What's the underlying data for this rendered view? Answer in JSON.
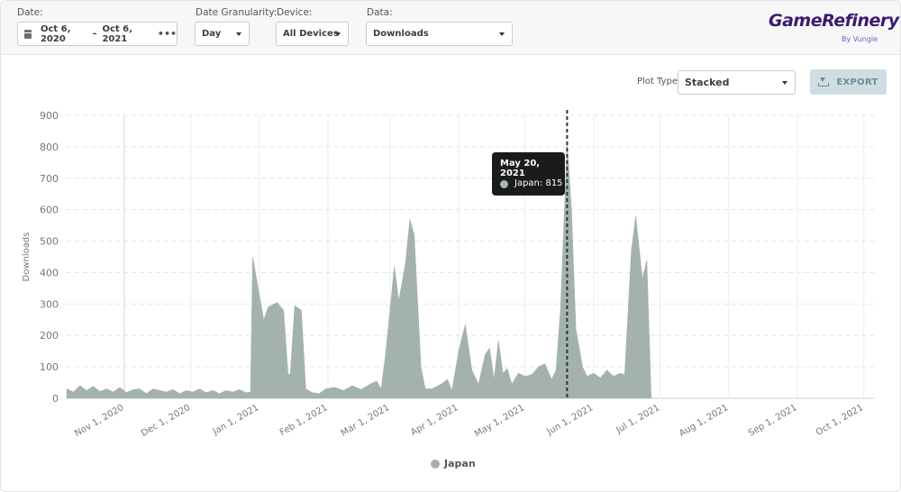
{
  "filters": {
    "date_label": "Date:",
    "date_start": "Oct 6, 2020",
    "date_sep": "–",
    "date_end": "Oct 6, 2021",
    "more": "•••",
    "granularity_label": "Date Granularity:",
    "granularity_value": "Day",
    "device_label": "Device:",
    "device_value": "All Devices",
    "data_label": "Data:",
    "data_value": "Downloads"
  },
  "brand": {
    "name": "GameRefinery",
    "sub": "By Vungle"
  },
  "toolbar": {
    "plot_type_label": "Plot Type:",
    "plot_type_value": "Stacked",
    "export_label": "EXPORT"
  },
  "tooltip": {
    "date": "May 20, 2021",
    "series": "Japan",
    "value_text": "815"
  },
  "colors": {
    "series": "#a3b3ab",
    "crosshair": "#333333",
    "tooltip_bg": "#1b1b1b",
    "export_bg": "#cfdde3"
  },
  "chart_data": {
    "type": "area",
    "stacked": true,
    "ylabel": "Downloads",
    "ylim": [
      0,
      900
    ],
    "yticks": [
      0,
      100,
      200,
      300,
      400,
      500,
      600,
      700,
      800,
      900
    ],
    "xlim": [
      "2020-10-06",
      "2021-10-06"
    ],
    "xticks": [
      "2020-11-01",
      "2020-12-01",
      "2021-01-01",
      "2021-02-01",
      "2021-03-01",
      "2021-04-01",
      "2021-05-01",
      "2021-06-01",
      "2021-07-01",
      "2021-08-01",
      "2021-09-01",
      "2021-10-01"
    ],
    "xtick_labels": [
      "Nov 1, 2020",
      "Dec 1, 2020",
      "Jan 1, 2021",
      "Feb 1, 2021",
      "Mar 1, 2021",
      "Apr 1, 2021",
      "May 1, 2021",
      "Jun 1, 2021",
      "Jul 1, 2021",
      "Aug 1, 2021",
      "Sep 1, 2021",
      "Oct 1, 2021"
    ],
    "grid": true,
    "legend_position": "bottom",
    "highlight_date": "2021-05-20",
    "series": [
      {
        "name": "Japan",
        "color": "#a3b3ab",
        "points": [
          [
            "2020-10-06",
            30
          ],
          [
            "2020-10-09",
            20
          ],
          [
            "2020-10-12",
            40
          ],
          [
            "2020-10-15",
            25
          ],
          [
            "2020-10-18",
            38
          ],
          [
            "2020-10-21",
            22
          ],
          [
            "2020-10-24",
            30
          ],
          [
            "2020-10-27",
            20
          ],
          [
            "2020-10-30",
            35
          ],
          [
            "2020-11-02",
            18
          ],
          [
            "2020-11-05",
            28
          ],
          [
            "2020-11-08",
            30
          ],
          [
            "2020-11-11",
            15
          ],
          [
            "2020-11-14",
            30
          ],
          [
            "2020-11-17",
            25
          ],
          [
            "2020-11-20",
            20
          ],
          [
            "2020-11-23",
            28
          ],
          [
            "2020-11-26",
            15
          ],
          [
            "2020-11-29",
            25
          ],
          [
            "2020-12-02",
            20
          ],
          [
            "2020-12-05",
            30
          ],
          [
            "2020-12-08",
            18
          ],
          [
            "2020-12-11",
            25
          ],
          [
            "2020-12-14",
            15
          ],
          [
            "2020-12-17",
            25
          ],
          [
            "2020-12-20",
            20
          ],
          [
            "2020-12-23",
            28
          ],
          [
            "2020-12-26",
            18
          ],
          [
            "2020-12-28",
            20
          ],
          [
            "2020-12-29",
            450
          ],
          [
            "2021-01-01",
            330
          ],
          [
            "2021-01-03",
            250
          ],
          [
            "2021-01-05",
            290
          ],
          [
            "2021-01-09",
            305
          ],
          [
            "2021-01-12",
            280
          ],
          [
            "2021-01-14",
            75
          ],
          [
            "2021-01-15",
            80
          ],
          [
            "2021-01-17",
            295
          ],
          [
            "2021-01-20",
            280
          ],
          [
            "2021-01-22",
            30
          ],
          [
            "2021-01-25",
            18
          ],
          [
            "2021-01-28",
            15
          ],
          [
            "2021-01-31",
            30
          ],
          [
            "2021-02-04",
            35
          ],
          [
            "2021-02-08",
            25
          ],
          [
            "2021-02-12",
            40
          ],
          [
            "2021-02-16",
            28
          ],
          [
            "2021-02-20",
            45
          ],
          [
            "2021-02-23",
            55
          ],
          [
            "2021-02-25",
            30
          ],
          [
            "2021-02-27",
            140
          ],
          [
            "2021-03-03",
            420
          ],
          [
            "2021-03-05",
            310
          ],
          [
            "2021-03-08",
            430
          ],
          [
            "2021-03-10",
            570
          ],
          [
            "2021-03-12",
            520
          ],
          [
            "2021-03-15",
            100
          ],
          [
            "2021-03-17",
            30
          ],
          [
            "2021-03-20",
            30
          ],
          [
            "2021-03-24",
            45
          ],
          [
            "2021-03-27",
            60
          ],
          [
            "2021-03-29",
            25
          ],
          [
            "2021-04-01",
            150
          ],
          [
            "2021-04-04",
            235
          ],
          [
            "2021-04-07",
            90
          ],
          [
            "2021-04-10",
            45
          ],
          [
            "2021-04-13",
            140
          ],
          [
            "2021-04-15",
            160
          ],
          [
            "2021-04-17",
            60
          ],
          [
            "2021-04-19",
            185
          ],
          [
            "2021-04-21",
            80
          ],
          [
            "2021-04-23",
            95
          ],
          [
            "2021-04-25",
            45
          ],
          [
            "2021-04-28",
            80
          ],
          [
            "2021-05-01",
            70
          ],
          [
            "2021-05-04",
            75
          ],
          [
            "2021-05-07",
            100
          ],
          [
            "2021-05-10",
            110
          ],
          [
            "2021-05-13",
            60
          ],
          [
            "2021-05-15",
            90
          ],
          [
            "2021-05-17",
            280
          ],
          [
            "2021-05-20",
            815
          ],
          [
            "2021-05-22",
            600
          ],
          [
            "2021-05-24",
            220
          ],
          [
            "2021-05-27",
            100
          ],
          [
            "2021-05-29",
            70
          ],
          [
            "2021-06-01",
            80
          ],
          [
            "2021-06-04",
            65
          ],
          [
            "2021-06-07",
            90
          ],
          [
            "2021-06-10",
            70
          ],
          [
            "2021-06-13",
            80
          ],
          [
            "2021-06-15",
            75
          ],
          [
            "2021-06-18",
            470
          ],
          [
            "2021-06-20",
            580
          ],
          [
            "2021-06-23",
            380
          ],
          [
            "2021-06-25",
            440
          ],
          [
            "2021-06-27",
            0
          ]
        ]
      }
    ]
  }
}
